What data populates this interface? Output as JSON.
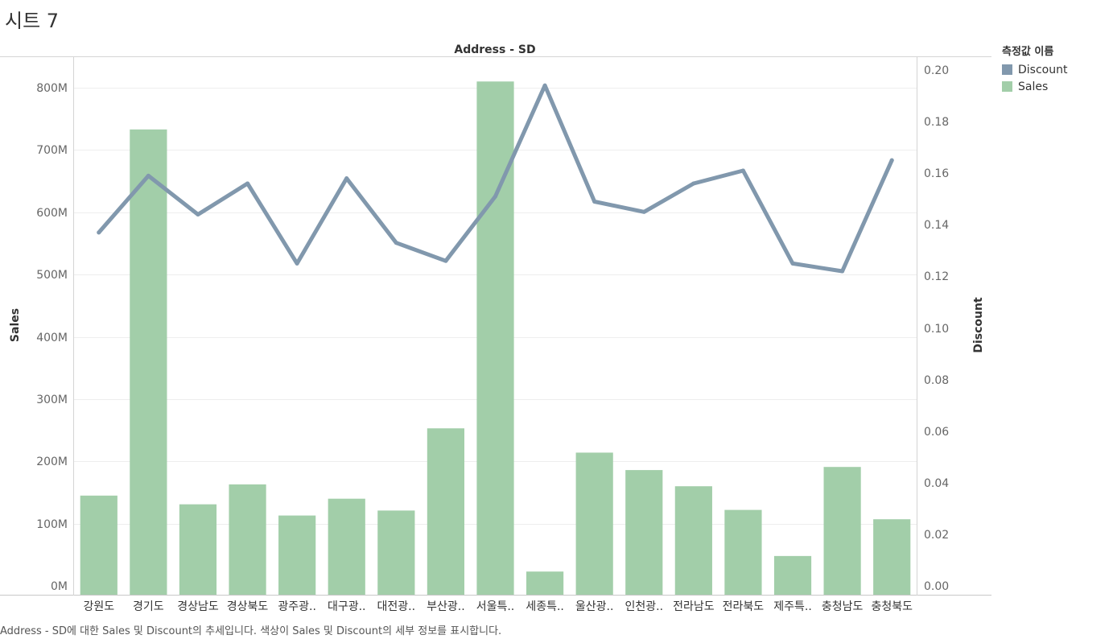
{
  "sheet": {
    "title": "시트 7",
    "caption": "Address - SD에 대한 Sales 및 Discount의 추세입니다. 색상이 Sales 및 Discount의 세부 정보를 표시합니다."
  },
  "legend": {
    "title": "측정값 이름",
    "items": [
      {
        "label": "Discount",
        "color": "#8198ad"
      },
      {
        "label": "Sales",
        "color": "#a2cea9"
      }
    ]
  },
  "chart_data": {
    "type": "bar",
    "title": "Address - SD",
    "ylabel": "Sales",
    "y2label": "Discount",
    "categories": [
      "강원도",
      "경기도",
      "경상남도",
      "경상북도",
      "광주광..",
      "대구광..",
      "대전광..",
      "부산광..",
      "서울특..",
      "세종특..",
      "울산광..",
      "인천광..",
      "전라남도",
      "전라북도",
      "제주특..",
      "충청남도",
      "충청북도"
    ],
    "series": [
      {
        "name": "Sales",
        "type": "bar",
        "axis": "left",
        "color": "#a2cea9",
        "values": [
          145000000,
          733000000,
          131000000,
          163000000,
          113000000,
          140000000,
          121000000,
          253000000,
          810000000,
          23000000,
          214000000,
          186000000,
          160000000,
          122000000,
          48000000,
          191000000,
          107000000
        ]
      },
      {
        "name": "Discount",
        "type": "line",
        "axis": "right",
        "color": "#8198ad",
        "values": [
          0.137,
          0.159,
          0.144,
          0.156,
          0.125,
          0.158,
          0.133,
          0.126,
          0.151,
          0.194,
          0.149,
          0.145,
          0.156,
          0.161,
          0.125,
          0.122,
          0.165
        ]
      }
    ],
    "ylim": [
      0,
      850000000
    ],
    "y2lim": [
      0,
      0.205
    ],
    "yticks": [
      0,
      100000000,
      200000000,
      300000000,
      400000000,
      500000000,
      600000000,
      700000000,
      800000000
    ],
    "ytick_labels": [
      "0M",
      "100M",
      "200M",
      "300M",
      "400M",
      "500M",
      "600M",
      "700M",
      "800M"
    ],
    "y2ticks": [
      0,
      0.02,
      0.04,
      0.06,
      0.08,
      0.1,
      0.12,
      0.14,
      0.16,
      0.18,
      0.2
    ],
    "y2tick_labels": [
      "0.00",
      "0.02",
      "0.04",
      "0.06",
      "0.08",
      "0.10",
      "0.12",
      "0.14",
      "0.16",
      "0.18",
      "0.20"
    ],
    "grid": true
  }
}
